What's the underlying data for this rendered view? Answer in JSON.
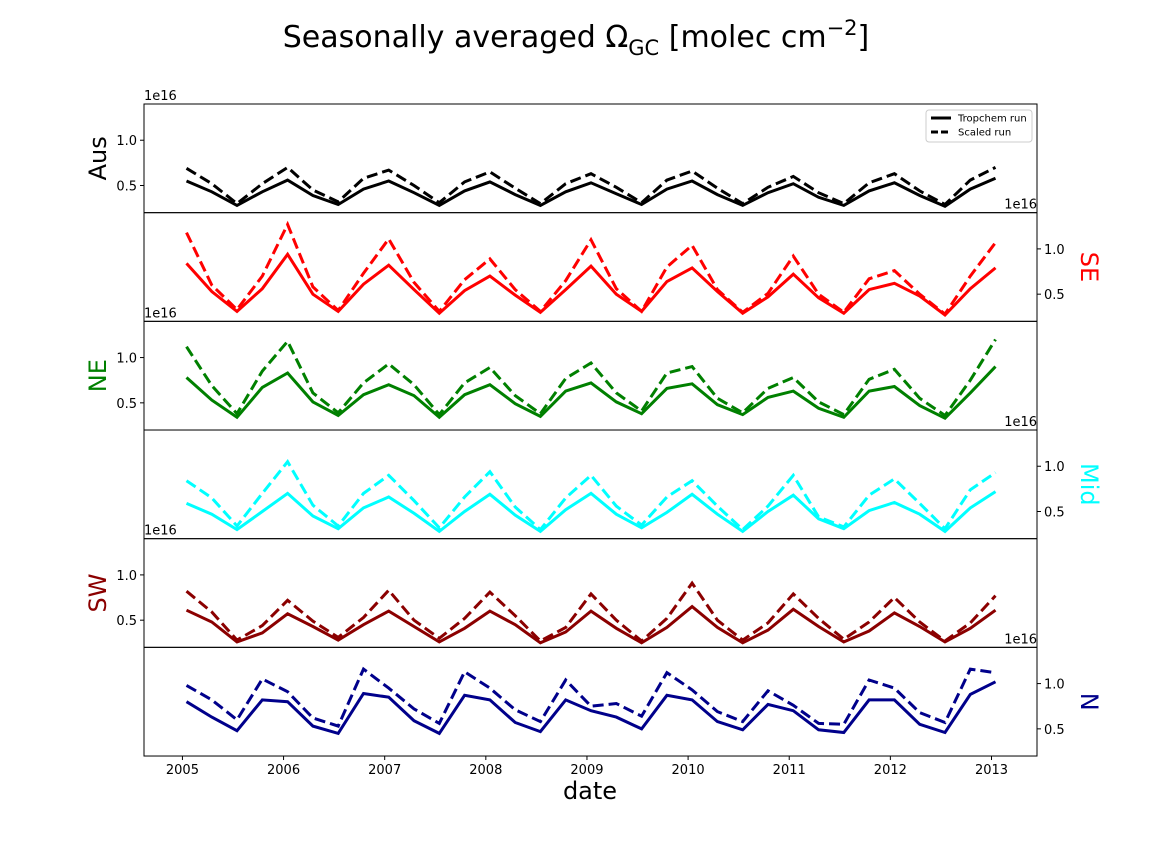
{
  "figure": {
    "title_main": "Seasonally averaged Ω",
    "title_sub": "GC",
    "title_tail": " [molec cm",
    "title_sup": "−2",
    "title_end": "]",
    "xlabel": "date",
    "legend": {
      "solid": "Tropchem run",
      "dashed": "Scaled run"
    }
  },
  "chart_data": {
    "type": "line",
    "title": "Seasonally averaged ΩGC [molec cm−2]",
    "xlabel": "date",
    "x_ticks": [
      "2005",
      "2006",
      "2007",
      "2008",
      "2009",
      "2010",
      "2011",
      "2012",
      "2013"
    ],
    "xlim": [
      2004.62,
      2013.45
    ],
    "ylim": [
      0.2,
      1.4
    ],
    "y_ticks": [
      0.5,
      1.0
    ],
    "y_tick_labels": [
      "0.5",
      "1.0"
    ],
    "y_offset_label": "1e16",
    "x": [
      2005.04,
      2005.29,
      2005.54,
      2005.79,
      2006.04,
      2006.29,
      2006.54,
      2006.79,
      2007.04,
      2007.29,
      2007.54,
      2007.79,
      2008.04,
      2008.29,
      2008.54,
      2008.79,
      2009.04,
      2009.29,
      2009.54,
      2009.79,
      2010.04,
      2010.29,
      2010.54,
      2010.79,
      2011.04,
      2011.29,
      2011.54,
      2011.79,
      2012.04,
      2012.29,
      2012.54,
      2012.79,
      2013.04
    ],
    "panels": [
      {
        "name": "Aus",
        "color": "#000000",
        "label_side": "left",
        "tropchem": [
          0.55,
          0.43,
          0.28,
          0.43,
          0.56,
          0.39,
          0.29,
          0.46,
          0.55,
          0.42,
          0.28,
          0.44,
          0.54,
          0.4,
          0.28,
          0.43,
          0.53,
          0.41,
          0.29,
          0.46,
          0.55,
          0.4,
          0.28,
          0.42,
          0.52,
          0.37,
          0.28,
          0.44,
          0.53,
          0.39,
          0.27,
          0.46,
          0.58
        ],
        "scaled": [
          0.69,
          0.52,
          0.3,
          0.52,
          0.7,
          0.45,
          0.32,
          0.58,
          0.67,
          0.5,
          0.31,
          0.54,
          0.65,
          0.47,
          0.3,
          0.52,
          0.63,
          0.48,
          0.31,
          0.56,
          0.66,
          0.47,
          0.3,
          0.48,
          0.6,
          0.42,
          0.3,
          0.53,
          0.63,
          0.44,
          0.29,
          0.56,
          0.7
        ]
      },
      {
        "name": "SE",
        "color": "#ff0000",
        "label_side": "right",
        "tropchem": [
          0.84,
          0.53,
          0.31,
          0.56,
          0.94,
          0.5,
          0.31,
          0.61,
          0.82,
          0.55,
          0.29,
          0.54,
          0.7,
          0.49,
          0.3,
          0.55,
          0.81,
          0.5,
          0.31,
          0.64,
          0.79,
          0.53,
          0.29,
          0.47,
          0.72,
          0.46,
          0.29,
          0.55,
          0.62,
          0.48,
          0.27,
          0.56,
          0.79
        ],
        "scaled": [
          1.18,
          0.6,
          0.33,
          0.7,
          1.27,
          0.58,
          0.32,
          0.73,
          1.11,
          0.63,
          0.31,
          0.66,
          0.89,
          0.55,
          0.31,
          0.65,
          1.1,
          0.56,
          0.31,
          0.8,
          1.04,
          0.55,
          0.3,
          0.51,
          0.92,
          0.5,
          0.3,
          0.67,
          0.76,
          0.5,
          0.28,
          0.7,
          1.07
        ]
      },
      {
        "name": "NE",
        "color": "#008000",
        "label_side": "left",
        "tropchem": [
          0.78,
          0.53,
          0.34,
          0.67,
          0.83,
          0.51,
          0.36,
          0.59,
          0.7,
          0.58,
          0.34,
          0.59,
          0.7,
          0.49,
          0.35,
          0.63,
          0.72,
          0.51,
          0.38,
          0.66,
          0.71,
          0.48,
          0.37,
          0.56,
          0.63,
          0.44,
          0.34,
          0.63,
          0.68,
          0.47,
          0.33,
          0.61,
          0.9
        ],
        "scaled": [
          1.12,
          0.69,
          0.38,
          0.85,
          1.18,
          0.61,
          0.39,
          0.72,
          0.93,
          0.7,
          0.37,
          0.72,
          0.89,
          0.58,
          0.38,
          0.77,
          0.94,
          0.61,
          0.41,
          0.83,
          0.9,
          0.55,
          0.39,
          0.66,
          0.78,
          0.51,
          0.37,
          0.76,
          0.87,
          0.55,
          0.36,
          0.75,
          1.2
        ]
      },
      {
        "name": "Mid",
        "color": "#00ffff",
        "label_side": "right",
        "tropchem": [
          0.59,
          0.47,
          0.3,
          0.5,
          0.7,
          0.45,
          0.31,
          0.54,
          0.66,
          0.48,
          0.28,
          0.5,
          0.69,
          0.46,
          0.28,
          0.52,
          0.7,
          0.47,
          0.32,
          0.49,
          0.69,
          0.47,
          0.28,
          0.5,
          0.68,
          0.42,
          0.31,
          0.51,
          0.6,
          0.47,
          0.28,
          0.54,
          0.72
        ],
        "scaled": [
          0.84,
          0.65,
          0.34,
          0.7,
          1.05,
          0.57,
          0.34,
          0.7,
          0.9,
          0.62,
          0.32,
          0.66,
          0.94,
          0.55,
          0.3,
          0.65,
          0.9,
          0.56,
          0.35,
          0.66,
          0.84,
          0.56,
          0.3,
          0.56,
          0.9,
          0.44,
          0.33,
          0.68,
          0.86,
          0.59,
          0.31,
          0.74,
          0.93
        ]
      },
      {
        "name": "SW",
        "color": "#8b0000",
        "label_side": "left",
        "tropchem": [
          0.61,
          0.48,
          0.26,
          0.36,
          0.57,
          0.43,
          0.28,
          0.45,
          0.6,
          0.43,
          0.26,
          0.41,
          0.6,
          0.45,
          0.25,
          0.37,
          0.6,
          0.41,
          0.25,
          0.42,
          0.65,
          0.42,
          0.25,
          0.39,
          0.62,
          0.43,
          0.26,
          0.38,
          0.58,
          0.43,
          0.26,
          0.41,
          0.61
        ],
        "scaled": [
          0.82,
          0.59,
          0.28,
          0.44,
          0.72,
          0.49,
          0.31,
          0.53,
          0.83,
          0.5,
          0.3,
          0.52,
          0.81,
          0.55,
          0.27,
          0.42,
          0.79,
          0.5,
          0.27,
          0.52,
          0.91,
          0.5,
          0.28,
          0.47,
          0.79,
          0.52,
          0.29,
          0.48,
          0.75,
          0.48,
          0.27,
          0.47,
          0.77
        ]
      },
      {
        "name": "N",
        "color": "#00008b",
        "label_side": "right",
        "tropchem": [
          0.8,
          0.63,
          0.48,
          0.82,
          0.8,
          0.53,
          0.45,
          0.89,
          0.85,
          0.59,
          0.45,
          0.87,
          0.82,
          0.57,
          0.47,
          0.82,
          0.7,
          0.63,
          0.5,
          0.87,
          0.82,
          0.58,
          0.49,
          0.77,
          0.7,
          0.49,
          0.46,
          0.82,
          0.82,
          0.55,
          0.46,
          0.88,
          1.02
        ],
        "scaled": [
          0.98,
          0.82,
          0.6,
          1.05,
          0.91,
          0.62,
          0.53,
          1.16,
          0.95,
          0.72,
          0.56,
          1.13,
          0.95,
          0.71,
          0.58,
          1.04,
          0.75,
          0.78,
          0.64,
          1.12,
          0.93,
          0.69,
          0.58,
          0.92,
          0.76,
          0.56,
          0.55,
          1.04,
          0.95,
          0.68,
          0.57,
          1.16,
          1.12
        ]
      }
    ]
  }
}
